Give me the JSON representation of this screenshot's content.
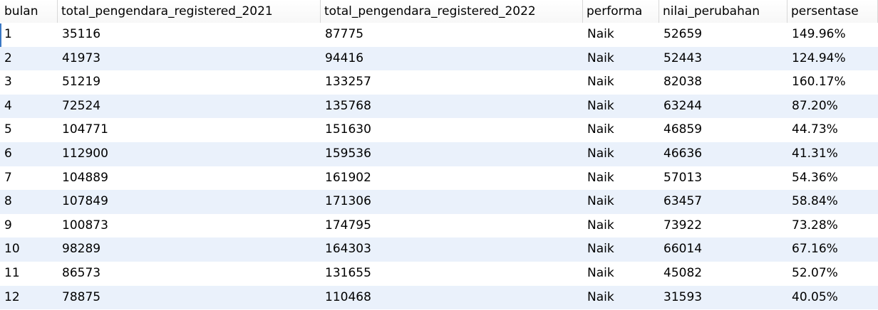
{
  "columns": [
    "bulan",
    "total_pengendara_registered_2021",
    "total_pengendara_registered_2022",
    "performa",
    "nilai_perubahan",
    "persentase"
  ],
  "rows": [
    [
      "1",
      "35116",
      "87775",
      "Naik",
      "52659",
      "149.96%"
    ],
    [
      "2",
      "41973",
      "94416",
      "Naik",
      "52443",
      "124.94%"
    ],
    [
      "3",
      "51219",
      "133257",
      "Naik",
      "82038",
      "160.17%"
    ],
    [
      "4",
      "72524",
      "135768",
      "Naik",
      "63244",
      "87.20%"
    ],
    [
      "5",
      "104771",
      "151630",
      "Naik",
      "46859",
      "44.73%"
    ],
    [
      "6",
      "112900",
      "159536",
      "Naik",
      "46636",
      "41.31%"
    ],
    [
      "7",
      "104889",
      "161902",
      "Naik",
      "57013",
      "54.36%"
    ],
    [
      "8",
      "107849",
      "171306",
      "Naik",
      "63457",
      "58.84%"
    ],
    [
      "9",
      "100873",
      "174795",
      "Naik",
      "73922",
      "73.28%"
    ],
    [
      "10",
      "98289",
      "164303",
      "Naik",
      "66014",
      "67.16%"
    ],
    [
      "11",
      "86573",
      "131655",
      "Naik",
      "45082",
      "52.07%"
    ],
    [
      "12",
      "78875",
      "110468",
      "Naik",
      "31593",
      "40.05%"
    ]
  ],
  "colors": {
    "alt_row": "#eaf1fb",
    "grid_line": "#d8d8d8",
    "selection": "#3b78c4"
  }
}
